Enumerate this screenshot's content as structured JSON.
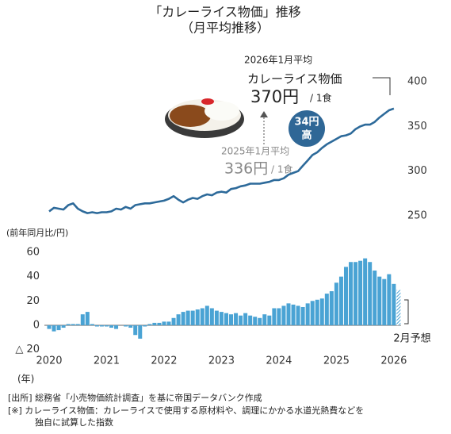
{
  "chart_data": [
    {
      "type": "line",
      "title": "「カレーライス物価」推移",
      "subtitle": "（月平均推移）",
      "color": "#2d6a9a",
      "ylim": [
        240,
        410
      ],
      "yticks": [
        250,
        300,
        350,
        400
      ],
      "values": [
        255,
        259,
        258,
        257,
        262,
        264,
        258,
        255,
        253,
        254,
        253,
        254,
        254,
        255,
        258,
        257,
        260,
        258,
        262,
        263,
        264,
        264,
        265,
        266,
        267,
        269,
        272,
        268,
        265,
        268,
        270,
        269,
        272,
        274,
        273,
        276,
        277,
        276,
        280,
        281,
        283,
        284,
        286,
        286,
        286,
        287,
        288,
        290,
        290,
        292,
        296,
        298,
        300,
        306,
        312,
        318,
        321,
        326,
        330,
        333,
        336,
        339,
        340,
        342,
        347,
        350,
        352,
        352,
        355,
        360,
        364,
        368,
        370
      ],
      "annotations": {
        "latest_period": "2026年1月平均",
        "latest_name": "カレーライス物価",
        "latest_price": "370円",
        "latest_unit": "/ 1食",
        "prev_period": "2025年1月平均",
        "prev_price": "336円",
        "prev_unit": "/ 1食",
        "diff_amount": "34円",
        "diff_word": "高"
      }
    },
    {
      "type": "bar",
      "ylabel": "(前年同月比/円)",
      "xlabel": "(年)",
      "color": "#4aa3d4",
      "ylim": [
        -25,
        65
      ],
      "yticks": [
        60,
        40,
        20,
        0,
        {
          "value": -20,
          "label": "△ 20"
        }
      ],
      "x_labels": [
        "2020",
        "2021",
        "2022",
        "2023",
        "2024",
        "2025",
        "2026"
      ],
      "values": [
        -3,
        -5,
        -4,
        -2,
        1,
        1,
        1,
        9,
        11,
        1,
        -1,
        -1,
        -1,
        -2,
        -3,
        0,
        -1,
        -2,
        -8,
        -11,
        -1,
        1,
        2,
        2,
        3,
        3,
        6,
        9,
        11,
        12,
        12,
        13,
        14,
        16,
        14,
        12,
        11,
        10,
        9,
        10,
        8,
        10,
        8,
        7,
        6,
        9,
        8,
        14,
        14,
        16,
        18,
        17,
        16,
        15,
        18,
        20,
        21,
        22,
        26,
        28,
        35,
        40,
        48,
        52,
        52,
        53,
        55,
        52,
        45,
        40,
        38,
        42,
        34
      ],
      "forecast": {
        "label": "2月予想",
        "value": 29
      }
    },
    {
      "type": "notes",
      "source": "[出所]  総務省「小売物価統計調査」を基に帝国データバンク作成",
      "note1": "[※]  カレーライス物価：カレーライスで使用する原材料や、調理にかかる水道光熱費などを",
      "note2": "独自に試算した指数"
    }
  ]
}
